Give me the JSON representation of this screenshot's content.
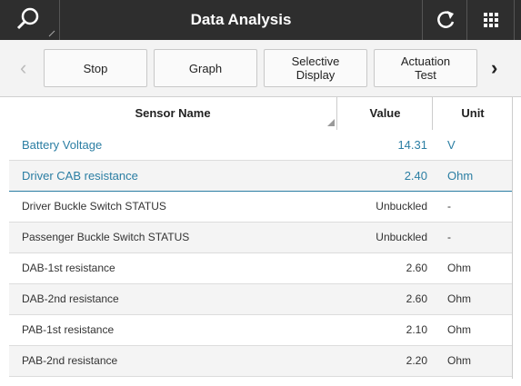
{
  "header": {
    "title": "Data Analysis"
  },
  "toolbar": {
    "buttons": [
      "Stop",
      "Graph",
      "Selective Display",
      "Actuation Test"
    ]
  },
  "table": {
    "columns": [
      "Sensor Name",
      "Value",
      "Unit"
    ],
    "rows": [
      [
        "Battery Voltage",
        "14.31",
        "V"
      ],
      [
        "Driver CAB resistance",
        "2.40",
        "Ohm"
      ],
      [
        "Driver Buckle Switch STATUS",
        "Unbuckled",
        "-"
      ],
      [
        "Passenger Buckle Switch STATUS",
        "Unbuckled",
        "-"
      ],
      [
        "DAB-1st resistance",
        "2.60",
        "Ohm"
      ],
      [
        "DAB-2nd resistance",
        "2.60",
        "Ohm"
      ],
      [
        "PAB-1st resistance",
        "2.10",
        "Ohm"
      ],
      [
        "PAB-2nd resistance",
        "2.20",
        "Ohm"
      ]
    ]
  }
}
